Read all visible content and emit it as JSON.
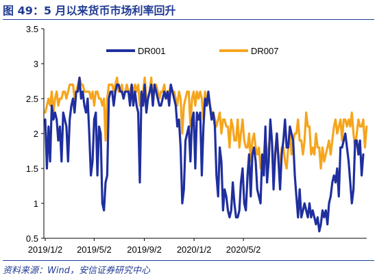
{
  "header": {
    "title": "图 49：5 月以来货币市场利率回升"
  },
  "footer": {
    "source": "资料来源：Wind，安信证券研究中心"
  },
  "colors": {
    "DR001": "#1f2f9e",
    "DR007": "#f5a51d",
    "title": "#1f3a93"
  },
  "chart_data": {
    "type": "line",
    "title": "",
    "xlabel": "",
    "ylabel": "",
    "ylim": [
      0.5,
      3.5
    ],
    "yticks": [
      "0.5",
      "1",
      "1.5",
      "2",
      "2.5",
      "3",
      "3.5"
    ],
    "xticks": [
      "2019/1/2",
      "2019/5/2",
      "2019/9/2",
      "2020/1/2",
      "2020/5/2"
    ],
    "xtick_index": [
      0,
      120,
      243,
      365,
      486
    ],
    "grid": false,
    "legend": "top",
    "series": [
      {
        "name": "DR001",
        "x_step_days": 4,
        "start": "2019/1/2",
        "values": [
          2.2,
          1.5,
          2.1,
          1.6,
          2.4,
          2.2,
          2.3,
          2.2,
          1.9,
          2.1,
          1.6,
          2.3,
          2.2,
          2.1,
          1.6,
          2.2,
          2.4,
          2.5,
          2.3,
          2.6,
          2.6,
          2.8,
          2.5,
          2.6,
          2.4,
          2.3,
          2.5,
          2.0,
          1.4,
          1.6,
          2.2,
          2.3,
          1.4,
          2.1,
          2.0,
          1.0,
          0.9,
          1.3,
          1.4,
          2.5,
          2.6,
          2.6,
          2.4,
          2.6,
          2.7,
          2.7,
          2.6,
          2.6,
          2.5,
          2.6,
          2.6,
          2.6,
          2.4,
          2.7,
          2.4,
          2.6,
          2.4,
          2.3,
          1.3,
          2.6,
          2.4,
          2.7,
          2.3,
          2.5,
          2.6,
          2.7,
          2.4,
          2.7,
          2.6,
          2.5,
          2.4,
          2.4,
          2.5,
          2.6,
          2.5,
          2.6,
          2.4,
          2.7,
          2.6,
          2.5,
          2.4,
          2.1,
          2.2,
          1.8,
          1.0,
          1.2,
          1.9,
          2.0,
          2.1,
          1.6,
          2.2,
          2.3,
          1.5,
          2.3,
          2.2,
          2.3,
          1.4,
          2.1,
          2.5,
          2.4,
          2.6,
          2.4,
          2.2,
          2.3,
          2.1,
          1.4,
          1.1,
          1.8,
          1.6,
          0.9,
          1.2,
          1.1,
          0.9,
          0.8,
          0.9,
          1.3,
          1.0,
          0.8,
          0.8,
          0.9,
          1.3,
          1.5,
          1.0,
          0.9,
          1.4,
          1.7,
          1.1,
          1.7,
          1.8,
          1.6,
          1.2,
          1.1,
          1.0,
          1.7,
          1.4,
          2.1,
          1.3,
          1.6,
          2.2,
          1.9,
          1.2,
          1.7,
          2.0,
          1.6,
          1.2,
          1.7,
          1.9,
          2.2,
          1.8,
          1.8,
          2.1,
          2.0,
          1.9,
          1.4,
          1.1,
          0.8,
          1.2,
          0.8,
          0.9,
          1.0,
          0.9,
          0.8,
          1.0,
          0.8,
          0.9,
          0.8,
          0.7,
          0.8,
          0.6,
          0.7,
          0.9,
          0.8,
          0.9,
          0.7,
          1.0,
          1.1,
          1.3,
          1.4,
          1.3,
          1.5,
          1.1,
          1.8,
          1.8,
          1.9,
          2.0,
          1.8,
          1.6,
          1.3,
          1.0,
          1.2,
          1.9,
          1.9,
          1.7,
          1.9,
          1.4,
          1.7
        ]
      },
      {
        "name": "DR007",
        "x_step_days": 4,
        "start": "2019/1/2",
        "values": [
          2.3,
          2.4,
          2.5,
          2.4,
          2.6,
          2.3,
          2.5,
          2.6,
          2.4,
          2.5,
          2.5,
          2.6,
          2.6,
          2.5,
          2.6,
          2.7,
          2.7,
          2.7,
          2.5,
          2.6,
          2.7,
          2.8,
          2.7,
          2.7,
          2.6,
          2.6,
          2.6,
          2.6,
          2.5,
          2.6,
          2.4,
          2.6,
          2.6,
          2.5,
          2.5,
          2.4,
          2.5,
          1.9,
          2.5,
          2.7,
          2.7,
          2.7,
          2.6,
          2.7,
          2.8,
          2.6,
          2.6,
          2.7,
          2.5,
          2.6,
          2.7,
          2.6,
          2.6,
          2.7,
          2.6,
          2.7,
          2.6,
          2.7,
          2.4,
          2.6,
          2.6,
          2.8,
          2.5,
          2.5,
          2.6,
          2.8,
          2.4,
          2.7,
          2.7,
          2.6,
          2.5,
          2.6,
          2.6,
          2.7,
          2.5,
          2.6,
          2.6,
          2.7,
          2.6,
          2.6,
          2.5,
          2.4,
          2.6,
          2.5,
          2.0,
          2.4,
          2.5,
          2.6,
          2.6,
          2.1,
          2.5,
          2.6,
          2.4,
          2.6,
          2.5,
          2.6,
          2.5,
          2.2,
          2.6,
          2.4,
          2.5,
          2.4,
          2.3,
          2.3,
          2.2,
          2.1,
          2.2,
          2.3,
          2.0,
          2.2,
          2.2,
          2.1,
          2.1,
          1.8,
          2.2,
          2.1,
          1.9,
          1.9,
          2.2,
          1.8,
          2.0,
          2.2,
          1.9,
          1.8,
          1.8,
          2.0,
          1.6,
          1.9,
          2.0,
          1.8,
          1.7,
          1.8,
          1.5,
          1.7,
          1.7,
          2.0,
          1.6,
          1.8,
          2.0,
          1.9,
          1.6,
          1.7,
          2.0,
          1.7,
          1.5,
          1.8,
          1.8,
          1.6,
          1.5,
          1.8,
          2.1,
          1.7,
          1.9,
          2.0,
          2.0,
          2.2,
          1.9,
          1.9,
          1.7,
          1.9,
          2.3,
          2.1,
          2.1,
          1.7,
          1.8,
          1.7,
          2.0,
          1.8,
          1.8,
          1.5,
          1.8,
          1.6,
          1.7,
          1.8,
          1.9,
          1.7,
          1.9,
          2.1,
          2.2,
          2.0,
          2.1,
          2.2,
          1.9,
          2.2,
          2.2,
          2.1,
          2.2,
          2.1,
          2.3,
          2.0,
          1.8,
          2.0,
          2.2,
          2.1,
          2.1,
          2.2,
          1.8,
          2.1
        ]
      }
    ]
  }
}
